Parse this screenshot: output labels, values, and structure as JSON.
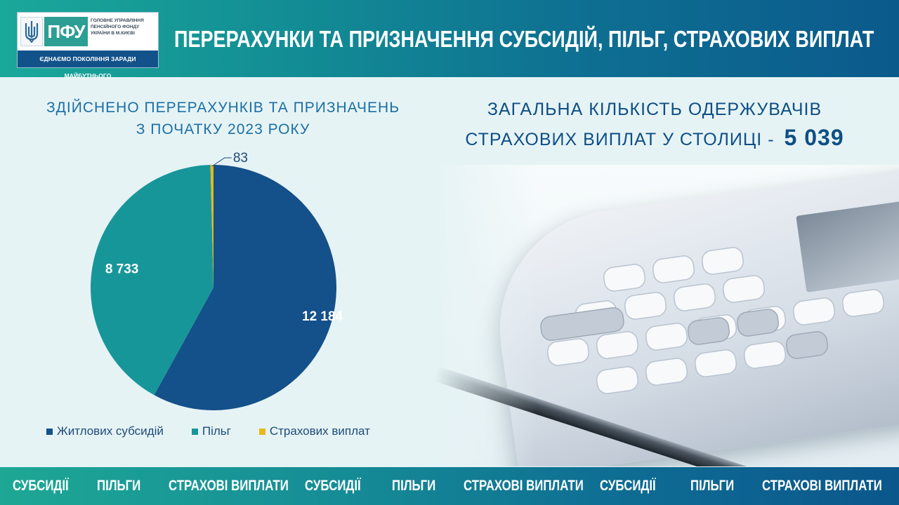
{
  "header": {
    "logo_text": "ПФУ",
    "org_lines": [
      "ГОЛОВНЕ УПРАВЛІННЯ",
      "ПЕНСІЙНОГО ФОНДУ",
      "УКРАЇНИ В М.КИЄВІ"
    ],
    "slogan": "ЄДНАЄМО ПОКОЛІННЯ ЗАРАДИ МАЙБУТНЬОГО",
    "title": "ПЕРЕРАХУНКИ ТА ПРИЗНАЧЕННЯ СУБСИДІЙ, ПІЛЬГ, СТРАХОВИХ ВИПЛАТ"
  },
  "summary": {
    "line1": "ЗАГАЛЬНА КІЛЬКІСТЬ ОДЕРЖУВАЧІВ",
    "line2": "СТРАХОВИХ ВИПЛАТ У СТОЛИЦІ  -",
    "value": "5 039"
  },
  "chart_data": {
    "type": "pie",
    "title_lines": [
      "ЗДІЙСНЕНО  ПЕРЕРАХУНКІВ  ТА  ПРИЗНАЧЕНЬ",
      "З  ПОЧАТКУ  2023  РОКУ"
    ],
    "series": [
      {
        "name": "Житлових субсидій",
        "value": 12184,
        "label": "12 184",
        "color": "#145089"
      },
      {
        "name": "Пільг",
        "value": 8733,
        "label": "8 733",
        "color": "#17969a"
      },
      {
        "name": "Страхових виплат",
        "value": 83,
        "label": "83",
        "color": "#e8b81c"
      }
    ],
    "legend_position": "bottom",
    "data_labels": true
  },
  "footer": {
    "items": [
      "СУБСИДІЇ",
      "ПІЛЬГИ",
      "СТРАХОВІ ВИПЛАТИ",
      "СУБСИДІЇ",
      "ПІЛЬГИ",
      "СТРАХОВІ ВИПЛАТИ",
      "СУБСИДІЇ",
      "ПІЛЬГИ",
      "СТРАХОВІ ВИПЛАТИ"
    ]
  },
  "colors": {
    "accent_teal": "#1aa89a",
    "accent_blue": "#0b5a8c",
    "text_blue": "#1b6fa5",
    "background": "#e6f3f5"
  }
}
